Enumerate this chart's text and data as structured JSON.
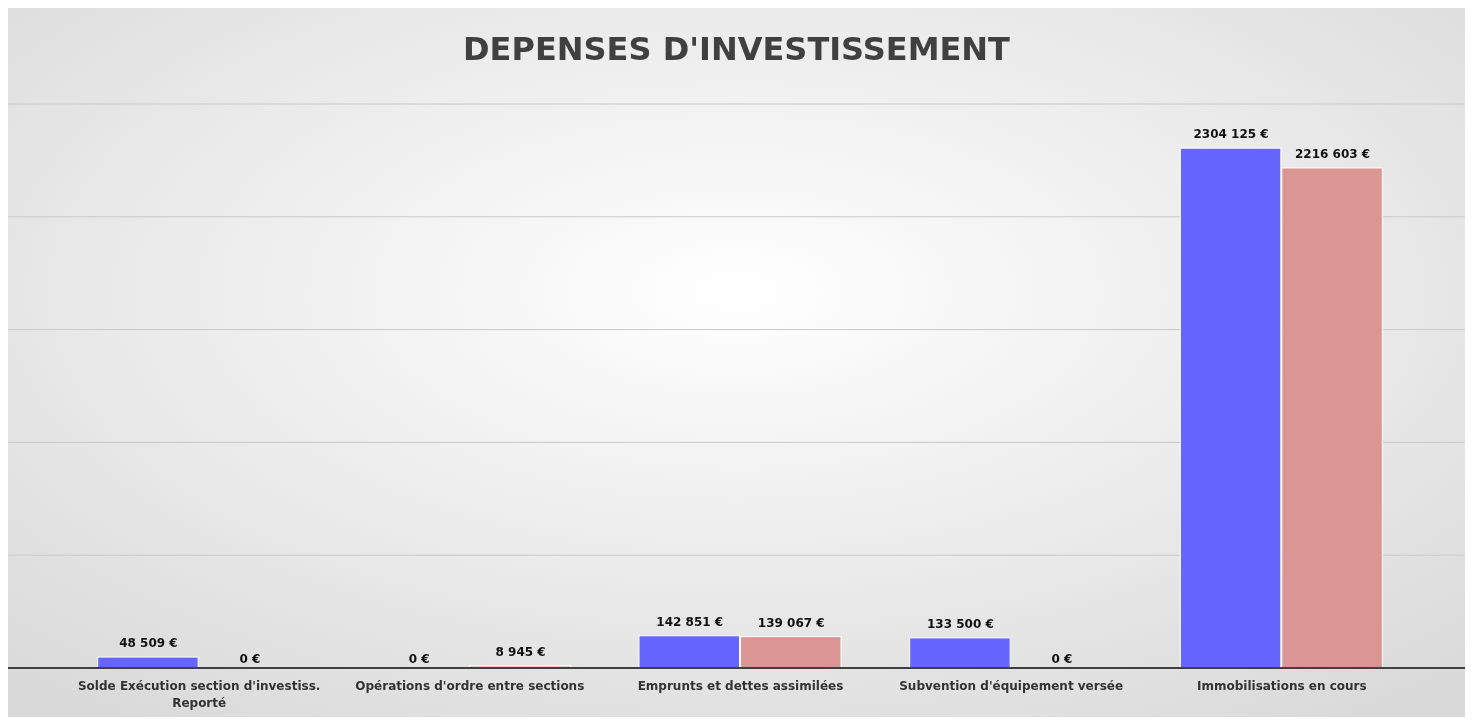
{
  "chart_data": {
    "type": "bar",
    "title": "DEPENSES D'INVESTISSEMENT",
    "categories": [
      "Solde Exécution section d'investiss. Reporté",
      "Opérations d'ordre entre sections",
      "Emprunts et dettes assimilées",
      "Subvention d'équipement versée",
      "Immobilisations en cours"
    ],
    "series": [
      {
        "color": "#6666ff",
        "values": [
          48509,
          0,
          142851,
          133500,
          2304125
        ],
        "value_labels": [
          "48 509 €",
          "0 €",
          "142 851 €",
          "133 500 €",
          "2304 125 €"
        ]
      },
      {
        "color": "#da9694",
        "values": [
          0,
          8945,
          139067,
          0,
          2216603
        ],
        "value_labels": [
          "0 €",
          "8 945 €",
          "139 067 €",
          "0 €",
          "2216 603 €"
        ]
      }
    ],
    "ylim": [
      0,
      2500000
    ],
    "yticks": [
      {
        "value": 0,
        "label": null
      },
      {
        "value": 500000,
        "label": null
      },
      {
        "value": 1000000,
        "label": null
      },
      {
        "value": 1500000,
        "label": null
      },
      {
        "value": 2000000,
        "label": null
      },
      {
        "value": 2500000,
        "label": null
      }
    ],
    "grid": "y",
    "tick_labels": "x"
  }
}
